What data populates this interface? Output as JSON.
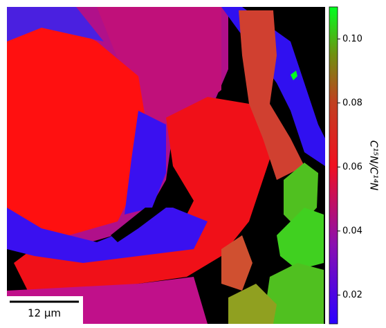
{
  "colorbar": {
    "label": "C¹⁵N/C¹⁴N",
    "lim": [
      0.011,
      0.11
    ],
    "ticks": [
      0.02,
      0.04,
      0.06,
      0.08,
      {
        "value": 0.1,
        "label": "0.10"
      }
    ]
  },
  "scale_bar": {
    "label": "12 μm"
  }
}
